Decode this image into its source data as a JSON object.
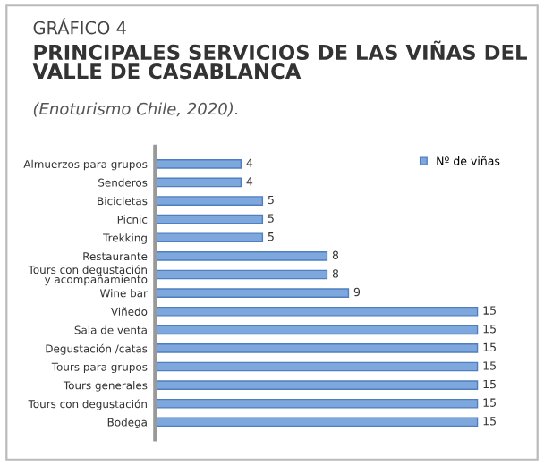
{
  "chart_data": {
    "type": "bar",
    "orientation": "horizontal",
    "annotations": [
      "GRÁFICO 4"
    ],
    "title": "PRINCIPALES SERVICIOS DE LAS VIÑAS DEL\nVALLE DE CASABLANCA",
    "subtitle": "(Enoturismo Chile, 2020).",
    "categories": [
      "Almuerzos para grupos",
      "Senderos",
      "Bicicletas",
      "Picnic",
      "Trekking",
      "Restaurante",
      "Tours con degustación\ny acompañamiento",
      "Wine bar",
      "Viñedo",
      "Sala de venta",
      "Degustación /catas",
      "Tours para grupos",
      "Tours generales",
      "Tours con degustación",
      "Bodega"
    ],
    "series": [
      {
        "name": "Nº de viñas",
        "color": "#7ea7de",
        "values": [
          4,
          4,
          5,
          5,
          5,
          8,
          8,
          9,
          15,
          15,
          15,
          15,
          15,
          15,
          15
        ]
      }
    ],
    "relative": false,
    "data_labels": true,
    "legend": "top right",
    "grid": false
  }
}
